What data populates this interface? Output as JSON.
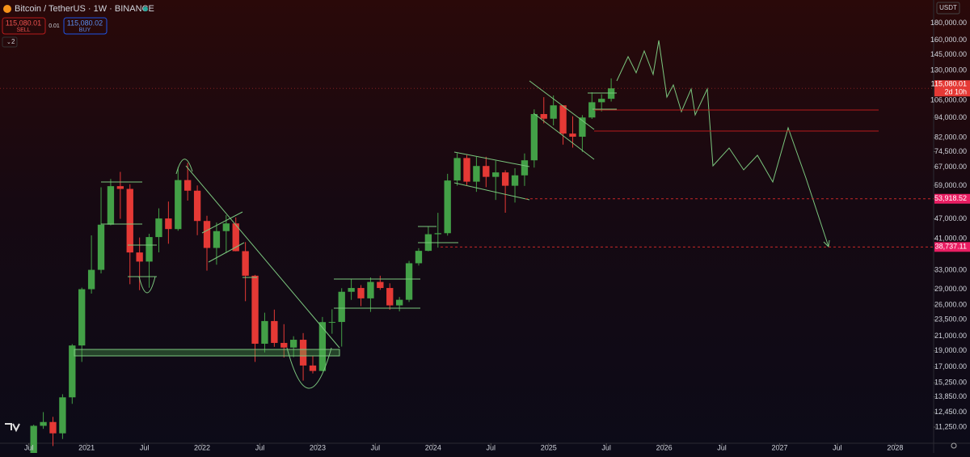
{
  "header": {
    "symbol": "Bitcoin / TetherUS · 1W · BINANCE",
    "sell_price": "115,080.01",
    "sell_label": "SELL",
    "spread": "0.01",
    "buy_price": "115,080.02",
    "buy_label": "BUY",
    "indicators_count": "2",
    "currency": "USDT"
  },
  "chart_data": {
    "type": "candlestick",
    "x": [
      "2020-07",
      "2020-08",
      "2020-09",
      "2020-10",
      "2020-11",
      "2020-12",
      "2021-01",
      "2021-02",
      "2021-03",
      "2021-04",
      "2021-05",
      "2021-06",
      "2021-07",
      "2021-08",
      "2021-09",
      "2021-10",
      "2021-11",
      "2021-12",
      "2022-01",
      "2022-02",
      "2022-03",
      "2022-04",
      "2022-05",
      "2022-06",
      "2022-07",
      "2022-08",
      "2022-09",
      "2022-10",
      "2022-11",
      "2022-12",
      "2023-01",
      "2023-02",
      "2023-03",
      "2023-04",
      "2023-05",
      "2023-06",
      "2023-07",
      "2023-08",
      "2023-09",
      "2023-10",
      "2023-11",
      "2023-12",
      "2024-01",
      "2024-02",
      "2024-03",
      "2024-04",
      "2024-05",
      "2024-06",
      "2024-07",
      "2024-08",
      "2024-09",
      "2024-10",
      "2024-11",
      "2024-12",
      "2025-01",
      "2025-02",
      "2025-03",
      "2025-04",
      "2025-05",
      "2025-06",
      "2025-07"
    ],
    "open": [
      9140,
      11350,
      11650,
      10780,
      13800,
      19700,
      28990,
      33110,
      45140,
      58800,
      57700,
      37300,
      35040,
      41460,
      47100,
      43800,
      61300,
      57000,
      46300,
      38480,
      43190,
      45530,
      37640,
      31800,
      19940,
      23300,
      20050,
      19420,
      20490,
      17170,
      16540,
      23130,
      23150,
      28480,
      29230,
      27220,
      30470,
      29230,
      25940,
      26960,
      34640,
      37720,
      42280,
      42580,
      61130,
      71330,
      60640,
      67530,
      62680,
      64620,
      58970,
      63330,
      70220,
      96450,
      93430,
      102400,
      84350,
      82550,
      94200,
      104600,
      107100
    ],
    "high": [
      11440,
      12470,
      12070,
      14100,
      19890,
      29300,
      41950,
      58350,
      61780,
      64850,
      59600,
      41330,
      42400,
      50500,
      52900,
      67000,
      69000,
      59100,
      47990,
      45800,
      48200,
      47440,
      40050,
      31990,
      24670,
      25200,
      22800,
      20990,
      21450,
      18390,
      23960,
      25250,
      29190,
      31000,
      29820,
      31430,
      31800,
      30180,
      27480,
      35200,
      38420,
      44700,
      48970,
      64000,
      73750,
      72800,
      71950,
      71960,
      70000,
      65600,
      66500,
      73600,
      99600,
      108300,
      109600,
      102500,
      95000,
      95750,
      112000,
      110500,
      123200
    ],
    "low": [
      8980,
      11120,
      9880,
      10370,
      13200,
      17600,
      28130,
      32300,
      44950,
      47000,
      30000,
      28800,
      29280,
      37330,
      39600,
      43300,
      53250,
      42000,
      32930,
      34300,
      37150,
      37600,
      26700,
      17600,
      18780,
      19520,
      18150,
      18190,
      15480,
      16260,
      16500,
      21350,
      19550,
      26940,
      25810,
      24800,
      28860,
      25170,
      24900,
      26550,
      34100,
      37600,
      38550,
      41880,
      59000,
      59200,
      56550,
      58400,
      53500,
      49000,
      52550,
      58900,
      66800,
      90500,
      89200,
      78200,
      76600,
      74400,
      93300,
      98200,
      105100
    ],
    "close": [
      11350,
      11650,
      10780,
      13800,
      19700,
      28990,
      33110,
      45140,
      58800,
      57700,
      37300,
      35040,
      41460,
      47100,
      43800,
      61300,
      57000,
      46300,
      38480,
      43190,
      45530,
      37640,
      31800,
      19940,
      23300,
      20050,
      19420,
      20490,
      17170,
      16540,
      23130,
      23150,
      28480,
      29230,
      27220,
      30470,
      29230,
      25940,
      26960,
      34640,
      37720,
      42280,
      42580,
      61130,
      71330,
      60640,
      67530,
      62680,
      64620,
      58970,
      63330,
      70220,
      96450,
      93430,
      102400,
      84350,
      82550,
      94200,
      104600,
      107100,
      115080
    ],
    "up_color": "#43a047",
    "down_color": "#e53935",
    "log_scale": true,
    "ylim": [
      10070,
      211000
    ],
    "yticks": [
      {
        "value": 180000,
        "label": "180,000.00"
      },
      {
        "value": 160000,
        "label": "160,000.00"
      },
      {
        "value": 145000,
        "label": "145,000.00"
      },
      {
        "value": 130000,
        "label": "130,000.00"
      },
      {
        "value": 106000,
        "label": "106,000.00"
      },
      {
        "value": 94000,
        "label": "94,000.00"
      },
      {
        "value": 82000,
        "label": "82,000.00"
      },
      {
        "value": 74500,
        "label": "74,500.00"
      },
      {
        "value": 67000,
        "label": "67,000.00"
      },
      {
        "value": 59000,
        "label": "59,000.00"
      },
      {
        "value": 47000,
        "label": "47,000.00"
      },
      {
        "value": 41000,
        "label": "41,000.00"
      },
      {
        "value": 33000,
        "label": "33,000.00"
      },
      {
        "value": 29000,
        "label": "29,000.00"
      },
      {
        "value": 26000,
        "label": "26,000.00"
      },
      {
        "value": 23500,
        "label": "23,500.00"
      },
      {
        "value": 21000,
        "label": "21,000.00"
      },
      {
        "value": 19000,
        "label": "19,000.00"
      },
      {
        "value": 17000,
        "label": "17,000.00"
      },
      {
        "value": 15250,
        "label": "15,250.00"
      },
      {
        "value": 13850,
        "label": "13,850.00"
      },
      {
        "value": 12450,
        "label": "12,450.00"
      },
      {
        "value": 11250,
        "label": "11,250.00"
      }
    ],
    "xlim": [
      "2020-04",
      "2028-05"
    ],
    "xticks": [
      {
        "value": "2020-07",
        "label": "Jul"
      },
      {
        "value": "2021-01",
        "label": "2021"
      },
      {
        "value": "2021-07",
        "label": "Jul"
      },
      {
        "value": "2022-01",
        "label": "2022"
      },
      {
        "value": "2022-07",
        "label": "Jul"
      },
      {
        "value": "2023-01",
        "label": "2023"
      },
      {
        "value": "2023-07",
        "label": "Jul"
      },
      {
        "value": "2024-01",
        "label": "2024"
      },
      {
        "value": "2024-07",
        "label": "Jul"
      },
      {
        "value": "2025-01",
        "label": "2025"
      },
      {
        "value": "2025-07",
        "label": "Jul"
      },
      {
        "value": "2026-01",
        "label": "2026"
      },
      {
        "value": "2026-07",
        "label": "Jul"
      },
      {
        "value": "2027-01",
        "label": "2027"
      },
      {
        "value": "2027-07",
        "label": "Jul"
      },
      {
        "value": "2028-01",
        "label": "2028"
      }
    ],
    "price_lines": [
      {
        "value": 53918.52,
        "label": "53,918.52"
      },
      {
        "value": 38737.11,
        "label": "38,737.11"
      }
    ],
    "last_price": {
      "value": 115080.01,
      "label": "115,080.01"
    },
    "countdown": "2d 10h"
  }
}
